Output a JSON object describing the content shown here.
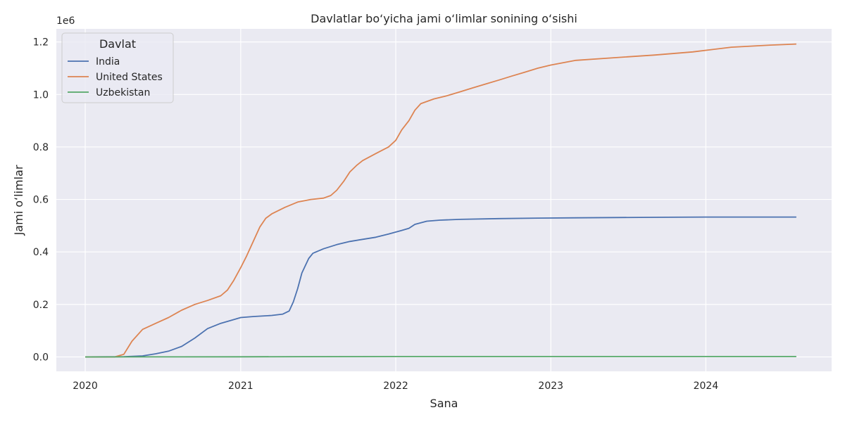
{
  "chart_data": {
    "type": "line",
    "title": "Davlatlar bo‘yicha jami o‘limlar sonining o‘sishi",
    "xlabel": "Sana",
    "ylabel": "Jami o‘limlar",
    "y_offset_label": "1e6",
    "xlim": [
      "2019-10-25",
      "2024-10-23"
    ],
    "ylim": [
      -55000,
      1250000
    ],
    "x_ticks": [
      "2020-01-01",
      "2021-01-01",
      "2022-01-01",
      "2023-01-01",
      "2024-01-01"
    ],
    "x_tick_labels": [
      "2020",
      "2021",
      "2022",
      "2023",
      "2024"
    ],
    "y_ticks": [
      0,
      200000,
      400000,
      600000,
      800000,
      1000000,
      1200000
    ],
    "y_tick_labels": [
      "0.0",
      "0.2",
      "0.4",
      "0.6",
      "0.8",
      "1.0",
      "1.2"
    ],
    "grid": true,
    "legend_title": "Davlat",
    "legend_position": "top-left",
    "series": [
      {
        "name": "India",
        "color": "#4c72b0",
        "x": [
          "2020-01-01",
          "2020-04-01",
          "2020-05-15",
          "2020-06-15",
          "2020-07-15",
          "2020-08-15",
          "2020-09-15",
          "2020-10-15",
          "2020-11-15",
          "2020-12-15",
          "2021-01-01",
          "2021-02-01",
          "2021-03-15",
          "2021-04-10",
          "2021-04-25",
          "2021-05-05",
          "2021-05-15",
          "2021-05-25",
          "2021-06-10",
          "2021-06-20",
          "2021-07-15",
          "2021-08-15",
          "2021-09-15",
          "2021-10-15",
          "2021-11-15",
          "2021-12-15",
          "2022-01-15",
          "2022-02-01",
          "2022-02-15",
          "2022-03-15",
          "2022-04-15",
          "2022-06-01",
          "2022-09-01",
          "2022-12-01",
          "2023-03-01",
          "2023-06-01",
          "2023-10-01",
          "2024-01-01",
          "2024-04-01",
          "2024-08-01"
        ],
        "y": [
          0,
          1000,
          4000,
          12000,
          22000,
          40000,
          72000,
          108000,
          128000,
          142000,
          150000,
          154000,
          158000,
          163000,
          175000,
          210000,
          260000,
          320000,
          375000,
          395000,
          412000,
          428000,
          440000,
          448000,
          456000,
          468000,
          482000,
          490000,
          505000,
          517000,
          521000,
          524000,
          527000,
          529000,
          530000,
          531000,
          532000,
          533000,
          533000,
          533000
        ]
      },
      {
        "name": "United States",
        "color": "#dd8452",
        "x": [
          "2020-01-01",
          "2020-03-10",
          "2020-04-01",
          "2020-04-20",
          "2020-05-15",
          "2020-06-15",
          "2020-07-15",
          "2020-08-15",
          "2020-09-15",
          "2020-10-15",
          "2020-11-15",
          "2020-12-01",
          "2020-12-15",
          "2021-01-01",
          "2021-01-15",
          "2021-02-01",
          "2021-02-15",
          "2021-03-01",
          "2021-03-15",
          "2021-04-15",
          "2021-05-15",
          "2021-06-15",
          "2021-07-15",
          "2021-08-01",
          "2021-08-15",
          "2021-09-01",
          "2021-09-15",
          "2021-10-01",
          "2021-10-15",
          "2021-11-15",
          "2021-12-15",
          "2022-01-01",
          "2022-01-15",
          "2022-02-01",
          "2022-02-15",
          "2022-03-01",
          "2022-04-01",
          "2022-05-01",
          "2022-06-01",
          "2022-07-01",
          "2022-08-01",
          "2022-09-01",
          "2022-10-01",
          "2022-11-01",
          "2022-12-01",
          "2023-01-01",
          "2023-03-01",
          "2023-06-01",
          "2023-09-01",
          "2023-12-01",
          "2024-03-01",
          "2024-06-01",
          "2024-08-01"
        ],
        "y": [
          0,
          0,
          10000,
          60000,
          105000,
          128000,
          150000,
          178000,
          200000,
          215000,
          233000,
          255000,
          290000,
          340000,
          385000,
          445000,
          495000,
          528000,
          545000,
          570000,
          590000,
          600000,
          605000,
          615000,
          635000,
          670000,
          705000,
          730000,
          748000,
          775000,
          800000,
          825000,
          865000,
          900000,
          940000,
          965000,
          983000,
          995000,
          1010000,
          1025000,
          1040000,
          1055000,
          1070000,
          1085000,
          1100000,
          1112000,
          1130000,
          1140000,
          1150000,
          1162000,
          1180000,
          1188000,
          1192000
        ]
      },
      {
        "name": "Uzbekistan",
        "color": "#55a868",
        "x": [
          "2020-01-01",
          "2020-06-01",
          "2021-01-01",
          "2021-06-01",
          "2021-10-01",
          "2022-01-01",
          "2022-06-01",
          "2023-01-01",
          "2023-06-01",
          "2024-01-01",
          "2024-08-01"
        ],
        "y": [
          0,
          200,
          600,
          900,
          1300,
          1500,
          1600,
          1630,
          1640,
          1640,
          1640
        ]
      }
    ]
  }
}
